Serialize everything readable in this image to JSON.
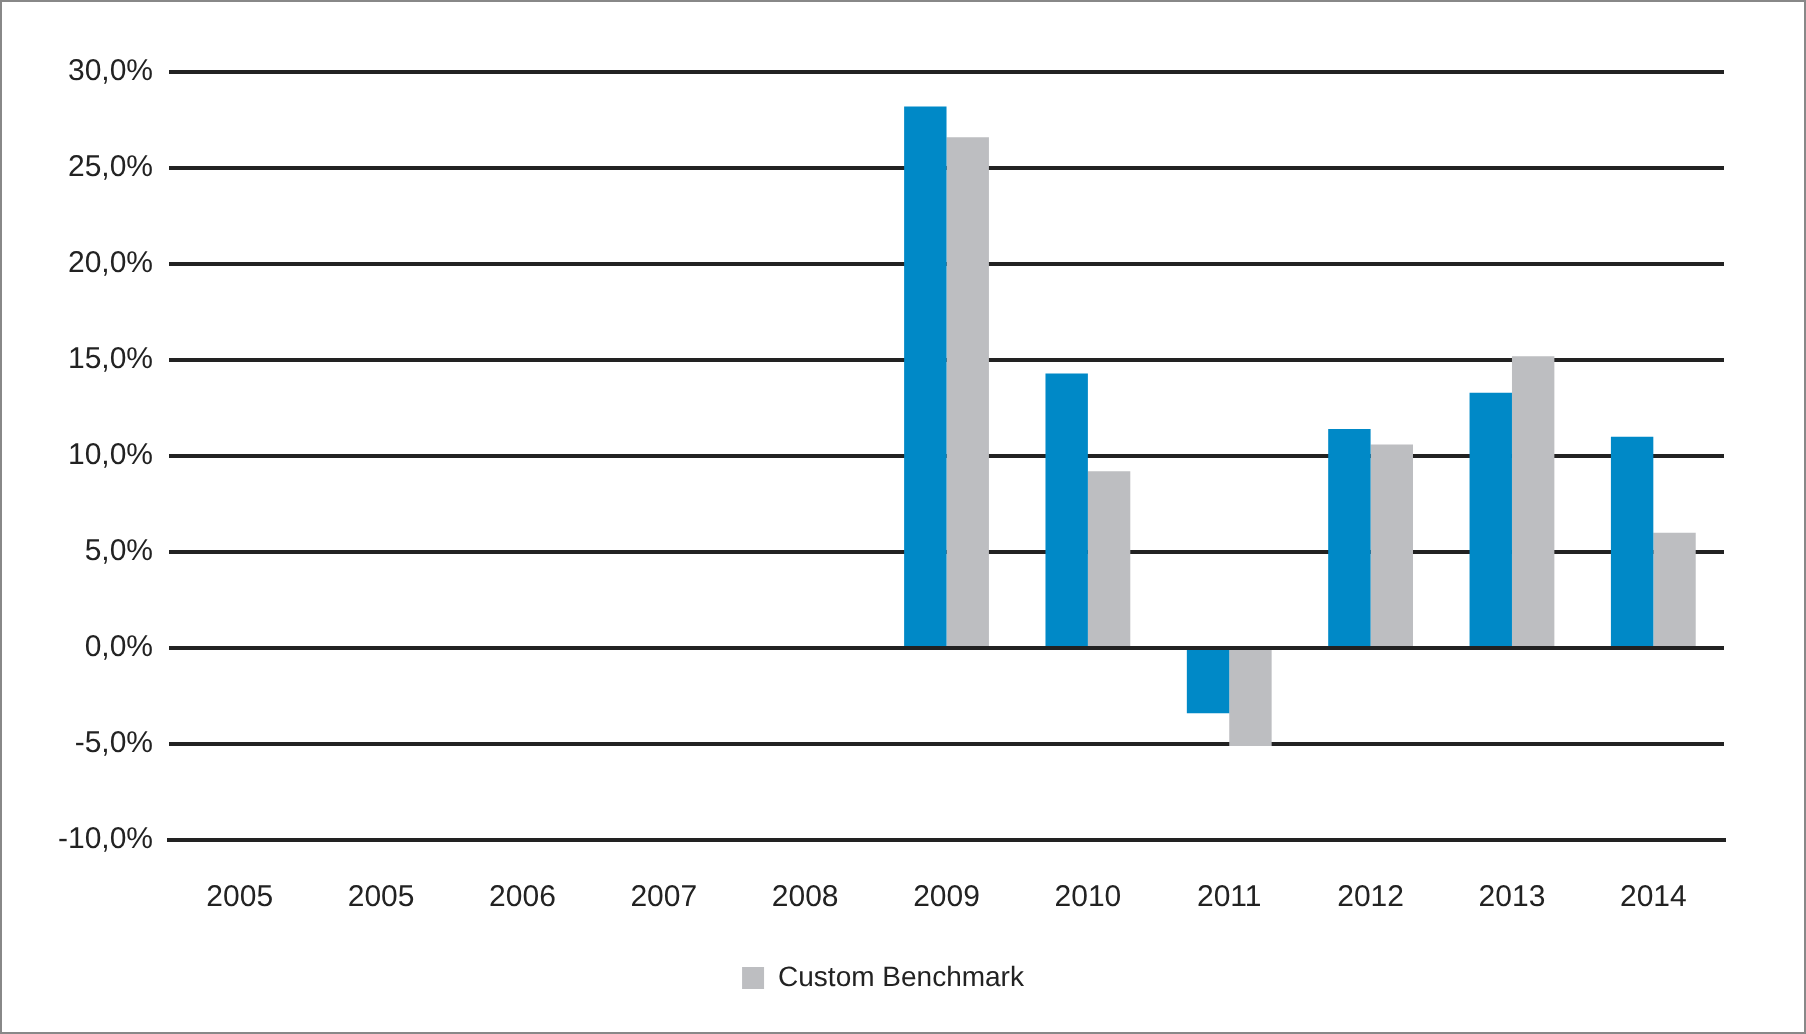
{
  "chart_data": {
    "type": "bar",
    "categories": [
      "2005",
      "2005",
      "2006",
      "2007",
      "2008",
      "2009",
      "2010",
      "2011",
      "2012",
      "2013",
      "2014"
    ],
    "series": [
      {
        "color": "#0089c7",
        "values": [
          null,
          null,
          null,
          null,
          null,
          28.2,
          14.3,
          -3.4,
          11.4,
          13.3,
          11.0
        ]
      },
      {
        "name": "Custom Benchmark",
        "color": "#bdbec1",
        "values": [
          null,
          null,
          null,
          null,
          null,
          26.6,
          9.2,
          -5.1,
          10.6,
          15.2,
          6.0
        ]
      }
    ],
    "ylim": [
      -10,
      30
    ],
    "yticks": [
      {
        "value": -10,
        "label": "-10,0%"
      },
      {
        "value": -5,
        "label": "-5,0%"
      },
      {
        "value": 0,
        "label": "0,0%"
      },
      {
        "value": 5,
        "label": "5,0%"
      },
      {
        "value": 10,
        "label": "10,0%"
      },
      {
        "value": 15,
        "label": "15,0%"
      },
      {
        "value": 20,
        "label": "20,0%"
      },
      {
        "value": 25,
        "label": "25,0%"
      },
      {
        "value": 30,
        "label": "30,0%"
      }
    ],
    "grid": "y",
    "legend": "bottom"
  }
}
